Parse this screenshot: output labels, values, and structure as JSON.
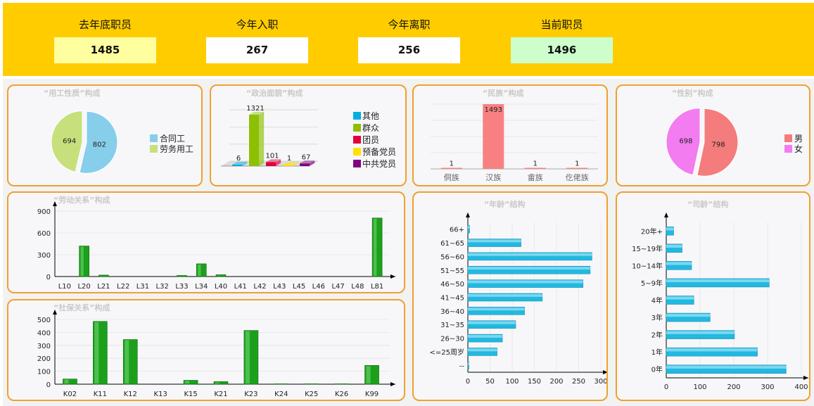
{
  "stats": [
    {
      "label": "去年底职员",
      "value": "1485",
      "bg": "#ffffa0"
    },
    {
      "label": "今年入职",
      "value": "267",
      "bg": "#ffffff"
    },
    {
      "label": "今年离职",
      "value": "256",
      "bg": "#ffffff"
    },
    {
      "label": "当前职员",
      "value": "1496",
      "bg": "#ccffcc"
    }
  ],
  "chart_data": [
    {
      "id": "employment",
      "type": "pie",
      "title": "“用工性质”构成",
      "slices": [
        {
          "name": "合同工",
          "value": 802,
          "color": "#87ceeb"
        },
        {
          "name": "劳务用工",
          "value": 694,
          "color": "#c8e07c"
        }
      ],
      "legend": "right"
    },
    {
      "id": "political",
      "type": "bar",
      "title": "“政治面貌”构成",
      "style": "3d",
      "categories": [
        "其他",
        "群众",
        "团员",
        "预备党员",
        "中共党员"
      ],
      "values": [
        6,
        1321,
        101,
        1,
        67
      ],
      "colors": [
        "#00b0e0",
        "#8cc000",
        "#e0003c",
        "#ffe000",
        "#800080"
      ],
      "legend": "right"
    },
    {
      "id": "ethnicity",
      "type": "bar",
      "title": "“民族”构成",
      "categories": [
        "侗族",
        "汉族",
        "畲族",
        "仡佬族"
      ],
      "values": [
        1,
        1493,
        1,
        1
      ],
      "color": "#f88080"
    },
    {
      "id": "gender",
      "type": "pie",
      "title": "“性别”构成",
      "slices": [
        {
          "name": "男",
          "value": 798,
          "color": "#f47c7c"
        },
        {
          "name": "女",
          "value": 698,
          "color": "#f37cf0"
        }
      ],
      "legend": "right"
    },
    {
      "id": "labor",
      "type": "bar",
      "title": "“劳动关系”构成",
      "categories": [
        "L10",
        "L20",
        "L21",
        "L22",
        "L31",
        "L32",
        "L33",
        "L34",
        "L40",
        "L41",
        "L42",
        "L43",
        "L45",
        "L46",
        "L47",
        "L48",
        "L81"
      ],
      "values": [
        0,
        420,
        20,
        2,
        3,
        2,
        15,
        175,
        25,
        2,
        2,
        2,
        2,
        2,
        2,
        2,
        805
      ],
      "yticks": [
        0,
        300,
        600,
        900
      ],
      "ylim": [
        0,
        900
      ],
      "color": "#1ca01c"
    },
    {
      "id": "social",
      "type": "bar",
      "title": "“社保关系”构成",
      "categories": [
        "K02",
        "K11",
        "K12",
        "K13",
        "K15",
        "K21",
        "K23",
        "K24",
        "K25",
        "K26",
        "K99"
      ],
      "values": [
        40,
        485,
        345,
        0,
        30,
        20,
        415,
        3,
        3,
        3,
        145
      ],
      "yticks": [
        0,
        100,
        200,
        300,
        400,
        500
      ],
      "ylim": [
        0,
        500
      ],
      "color": "#1ca01c"
    },
    {
      "id": "age",
      "type": "hbar",
      "title": "“年龄”结构",
      "categories": [
        "66+",
        "61~65",
        "56~60",
        "51~55",
        "46~50",
        "41~45",
        "36~40",
        "31~35",
        "26~30",
        "<=25周岁",
        "--"
      ],
      "values": [
        4,
        120,
        280,
        276,
        260,
        168,
        128,
        108,
        78,
        66,
        2
      ],
      "xticks": [
        0,
        50,
        100,
        150,
        200,
        250,
        300
      ],
      "xlim": [
        0,
        300
      ],
      "color": "#22b8e0"
    },
    {
      "id": "tenure",
      "type": "hbar",
      "title": "“司龄”结构",
      "categories": [
        "20年+",
        "15~19年",
        "10~14年",
        "5~9年",
        "4年",
        "3年",
        "2年",
        "1年",
        "0年"
      ],
      "values": [
        22,
        47,
        75,
        305,
        82,
        130,
        202,
        270,
        355
      ],
      "xticks": [
        0,
        100,
        200,
        300,
        400
      ],
      "xlim": [
        0,
        400
      ],
      "color": "#22b8e0"
    }
  ]
}
